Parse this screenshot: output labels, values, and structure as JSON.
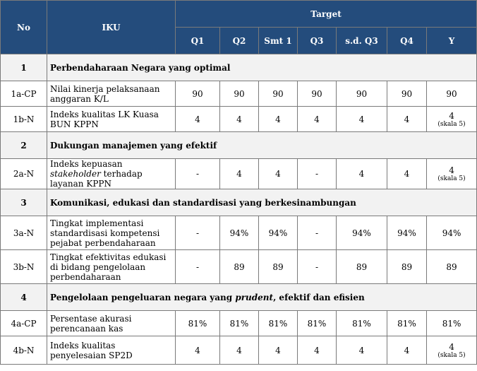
{
  "header": {
    "no": "No",
    "iku": "IKU",
    "target": "Target",
    "periods": [
      "Q1",
      "Q2",
      "Smt 1",
      "Q3",
      "s.d. Q3",
      "Q4",
      "Y"
    ]
  },
  "sections": [
    {
      "no": "1",
      "title": "Perbendaharaan Negara yang optimal",
      "rows": [
        {
          "code": "1a-CP",
          "name": "Nilai kinerja pelaksanaan anggaran K/L",
          "values": [
            "90",
            "90",
            "90",
            "90",
            "90",
            "90",
            "90"
          ],
          "scale": ""
        },
        {
          "code": "1b-N",
          "name": "Indeks kualitas LK Kuasa BUN KPPN",
          "values": [
            "4",
            "4",
            "4",
            "4",
            "4",
            "4",
            "4"
          ],
          "scale": "(skala 5)"
        }
      ]
    },
    {
      "no": "2",
      "title": "Dukungan manajemen yang efektif",
      "rows": [
        {
          "code": "2a-N",
          "name_pre": "Indeks kepuasan ",
          "name_em": "stakeholder",
          "name_post": " terhadap layanan KPPN",
          "values": [
            "-",
            "4",
            "4",
            "-",
            "4",
            "4",
            "4"
          ],
          "scale": "(skala 5)"
        }
      ]
    },
    {
      "no": "3",
      "title": "Komunikasi, edukasi dan standardisasi yang berkesinambungan",
      "rows": [
        {
          "code": "3a-N",
          "name": "Tingkat implementasi standardisasi kompetensi pejabat perbendaharaan",
          "values": [
            "-",
            "94%",
            "94%",
            "-",
            "94%",
            "94%",
            "94%"
          ],
          "scale": ""
        },
        {
          "code": "3b-N",
          "name": "Tingkat efektivitas edukasi di bidang pengelolaan perbendaharaan",
          "values": [
            "-",
            "89",
            "89",
            "-",
            "89",
            "89",
            "89"
          ],
          "scale": ""
        }
      ]
    },
    {
      "no": "4",
      "title_pre": "Pengelolaan pengeluaran negara yang ",
      "title_em": "prudent",
      "title_post": ", efektif dan efisien",
      "rows": [
        {
          "code": "4a-CP",
          "name": "Persentase akurasi perencanaan kas",
          "values": [
            "81%",
            "81%",
            "81%",
            "81%",
            "81%",
            "81%",
            "81%"
          ],
          "scale": ""
        },
        {
          "code": "4b-N",
          "name": "Indeks kualitas penyelesaian SP2D",
          "values": [
            "4",
            "4",
            "4",
            "4",
            "4",
            "4",
            "4"
          ],
          "scale": "(skala 5)"
        }
      ]
    }
  ]
}
